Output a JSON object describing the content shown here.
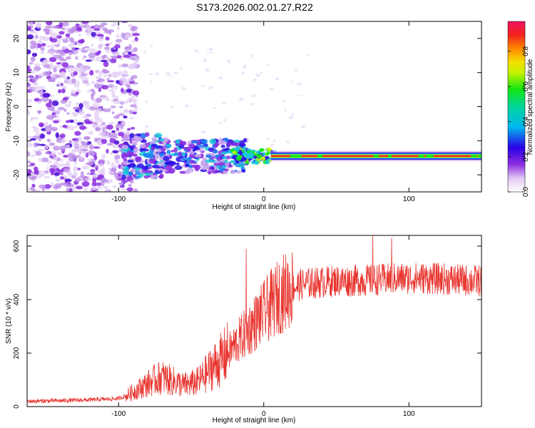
{
  "chart_data": [
    {
      "type": "heatmap",
      "title": "S173.2026.002.01.27.R22",
      "xlabel": "Height of straight line (km)",
      "ylabel": "Frequency (Hz)",
      "xlim": [
        -163,
        150
      ],
      "ylim": [
        -25,
        25
      ],
      "xticks": [
        -100,
        0,
        100
      ],
      "yticks": [
        -20,
        -10,
        0,
        10,
        20
      ],
      "colorbar": {
        "label": "Normalized spectral amplitude",
        "range": [
          0,
          0.97
        ],
        "ticks": [
          "0.0",
          "0.2",
          "0.4",
          "0.6",
          "0.8"
        ],
        "tick_values": [
          0.0,
          0.2,
          0.4,
          0.6,
          0.8
        ]
      },
      "features": {
        "noise_region_x": [
          -163,
          -95
        ],
        "tone_frequency_hz": -14.5,
        "tone_start_km": 5,
        "tone_end_km": 150,
        "scatter_band_x": [
          -97,
          -20
        ],
        "scatter_band_freq": [
          -22,
          -5
        ]
      }
    },
    {
      "type": "line",
      "xlabel": "Height of straight line (km)",
      "ylabel": "SNR (10 * v/v)",
      "xlim": [
        -163,
        150
      ],
      "ylim": [
        0,
        640
      ],
      "xticks": [
        -100,
        0,
        100
      ],
      "yticks": [
        0,
        200,
        400,
        600
      ],
      "series": [
        {
          "name": "SNR",
          "color": "#e8342e",
          "x": [
            -163,
            -140,
            -120,
            -100,
            -95,
            -90,
            -85,
            -80,
            -75,
            -70,
            -65,
            -60,
            -55,
            -50,
            -45,
            -40,
            -35,
            -30,
            -25,
            -20,
            -15,
            -10,
            -5,
            0,
            5,
            10,
            15,
            20,
            25,
            30,
            40,
            50,
            60,
            70,
            80,
            90,
            100,
            110,
            120,
            130,
            140,
            150
          ],
          "values": [
            20,
            22,
            25,
            30,
            40,
            55,
            70,
            85,
            100,
            110,
            100,
            90,
            80,
            85,
            95,
            120,
            150,
            170,
            200,
            230,
            260,
            290,
            320,
            350,
            380,
            410,
            430,
            445,
            455,
            460,
            465,
            470,
            470,
            472,
            475,
            478,
            480,
            480,
            478,
            475,
            472,
            470
          ]
        }
      ],
      "spikes": [
        {
          "x": -12,
          "value": 590
        },
        {
          "x": 75,
          "value": 640
        },
        {
          "x": 88,
          "value": 630
        }
      ]
    }
  ]
}
